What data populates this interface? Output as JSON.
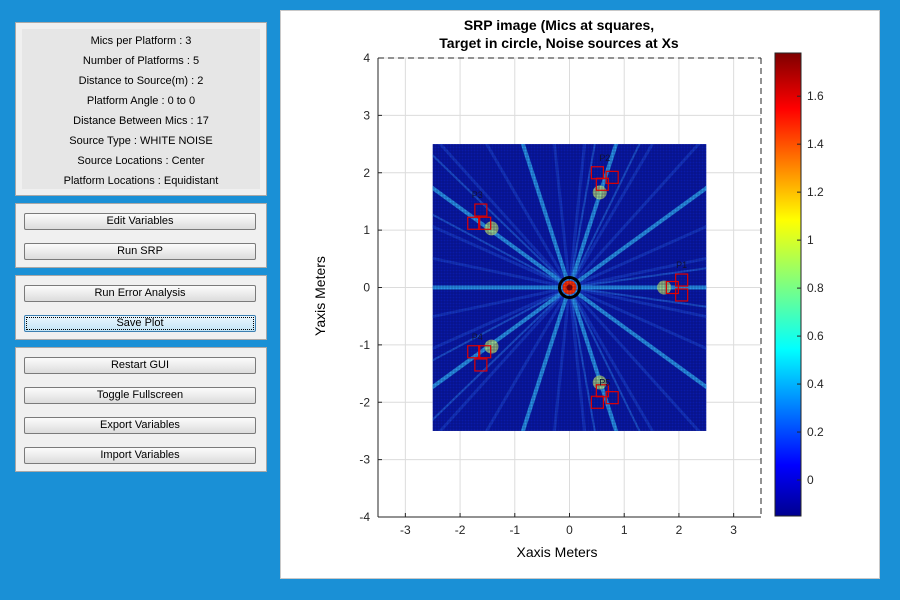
{
  "info": {
    "lines": [
      "Mics per Platform : 3",
      "Number of Platforms : 5",
      "Distance to Source(m) : 2",
      "Platform Angle : 0 to 0",
      "Distance Between Mics : 17",
      "Source Type : WHITE NOISE",
      "Source Locations : Center",
      "Platform Locations : Equidistant"
    ]
  },
  "buttons": {
    "edit_variables": "Edit Variables",
    "run_srp": "Run SRP",
    "run_error_analysis": "Run Error Analysis",
    "save_plot": "Save Plot",
    "restart_gui": "Restart GUI",
    "toggle_fullscreen": "Toggle Fullscreen",
    "export_variables": "Export Variables",
    "import_variables": "Import Variables"
  },
  "chart_data": {
    "type": "heatmap",
    "title": "SRP image (Mics at squares,",
    "subtitle": "Target in circle, Noise sources at Xs",
    "xlabel": "Xaxis Meters",
    "ylabel": "Yaxis Meters",
    "xlim": [
      -3.5,
      3.5
    ],
    "ylim": [
      -4,
      4
    ],
    "xticks": [
      -3,
      -2,
      -1,
      0,
      1,
      2,
      3
    ],
    "yticks": [
      -4,
      -3,
      -2,
      -1,
      0,
      1,
      2,
      3,
      4
    ],
    "image_extent": {
      "x": [
        -2.5,
        2.5
      ],
      "y": [
        -2.5,
        2.5
      ]
    },
    "grid": true,
    "colorbar": {
      "range": [
        -0.15,
        1.78
      ],
      "ticks": [
        0,
        0.2,
        0.4,
        0.6,
        0.8,
        1,
        1.2,
        1.4,
        1.6
      ],
      "tick_labels": [
        "0",
        "0.2",
        "0.4",
        "0.6",
        "0.8",
        "1",
        "1.2",
        "1.4",
        "1.6"
      ],
      "colormap": "jet"
    },
    "target": {
      "x": 0,
      "y": 0
    },
    "platforms": [
      {
        "label": "P1",
        "angle_deg": 0,
        "mics": [
          [
            2.05,
            0.13
          ],
          [
            2.05,
            -0.13
          ],
          [
            1.88,
            0.0
          ]
        ]
      },
      {
        "label": "P2",
        "angle_deg": 72,
        "mics": [
          [
            0.51,
            2.0
          ],
          [
            0.78,
            1.92
          ],
          [
            0.6,
            1.8
          ]
        ]
      },
      {
        "label": "P3",
        "angle_deg": 144,
        "mics": [
          [
            -1.62,
            1.35
          ],
          [
            -1.75,
            1.12
          ],
          [
            -1.55,
            1.12
          ]
        ]
      },
      {
        "label": "P4",
        "angle_deg": 216,
        "mics": [
          [
            -1.75,
            -1.12
          ],
          [
            -1.62,
            -1.35
          ],
          [
            -1.55,
            -1.12
          ]
        ]
      },
      {
        "label": "P5",
        "angle_deg": 288,
        "mics": [
          [
            0.51,
            -2.0
          ],
          [
            0.78,
            -1.92
          ],
          [
            0.6,
            -1.8
          ]
        ]
      }
    ]
  }
}
